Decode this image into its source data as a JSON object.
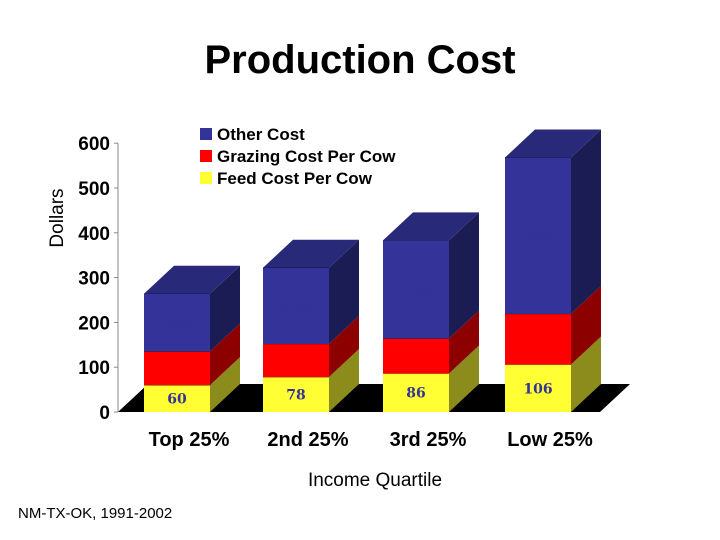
{
  "chart_data": {
    "type": "bar",
    "stacked": true,
    "style": "3d",
    "title": "Production Cost",
    "xlabel": "Income Quartile",
    "ylabel": "Dollars",
    "categories": [
      "Top 25%",
      "2nd 25%",
      "3rd 25%",
      "Low 25%"
    ],
    "series": [
      {
        "name": "Feed Cost Per Cow",
        "values": [
          60,
          78,
          86,
          106
        ],
        "color": "#ffff33"
      },
      {
        "name": "Grazing Cost Per Cow",
        "values": [
          75,
          74,
          78,
          113
        ],
        "color": "#ff0000"
      },
      {
        "name": "Other Cost",
        "values": [
          129,
          170,
          219,
          349
        ],
        "color": "#333399"
      }
    ],
    "yticks": [
      0,
      100,
      200,
      300,
      400,
      500,
      600
    ],
    "ylim": [
      0,
      600
    ],
    "legend_position": "top-center",
    "legend_order": [
      "Other Cost",
      "Grazing Cost Per Cow",
      "Feed Cost Per Cow"
    ],
    "grid": false
  },
  "footnote": "NM-TX-OK, 1991-2002"
}
